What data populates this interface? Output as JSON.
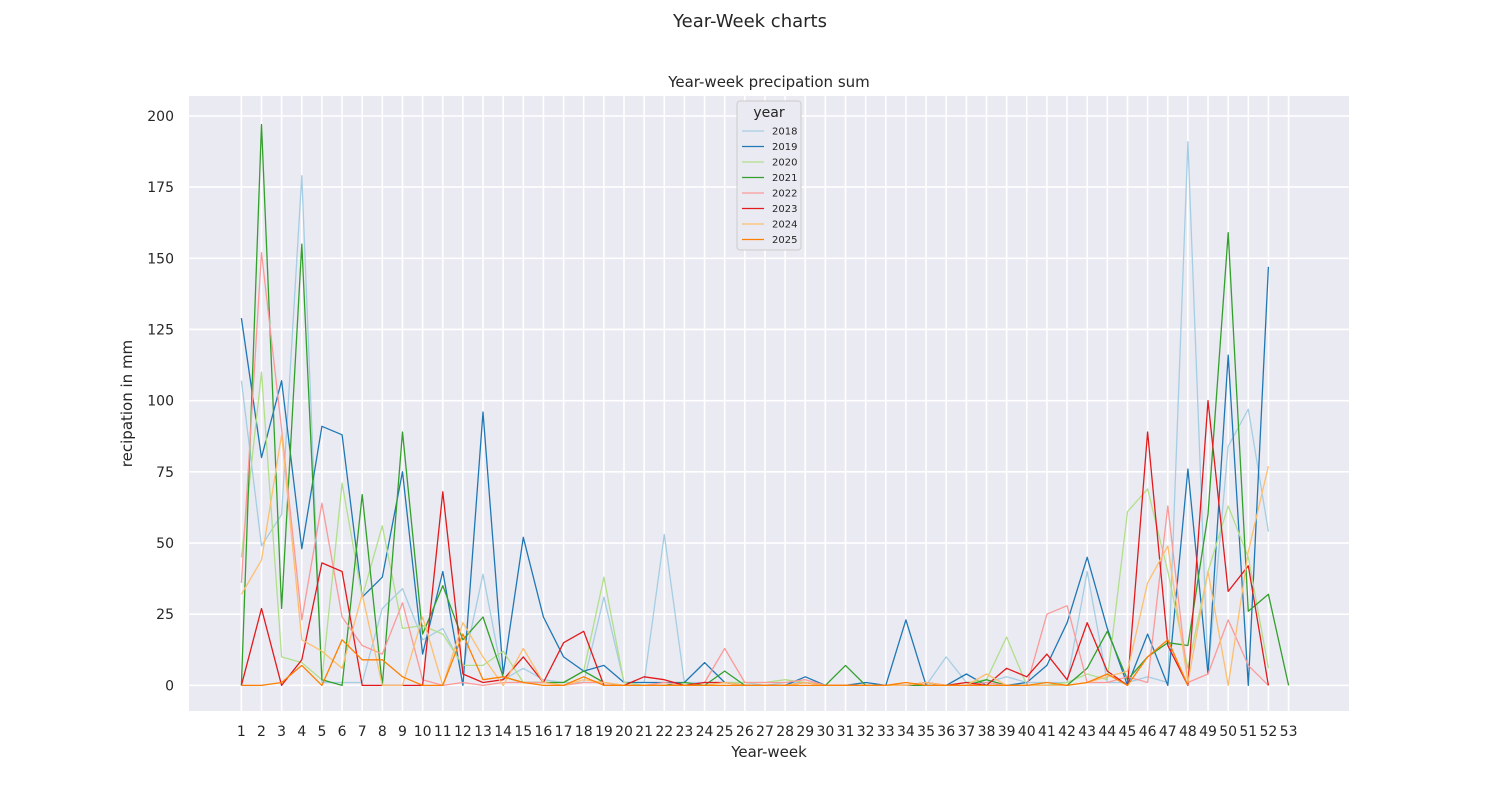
{
  "figure": {
    "suptitle": "Year-Week charts"
  },
  "chart_data": {
    "type": "line",
    "title": "Year-week precipation sum",
    "xlabel": "Year-week",
    "ylabel": "recipation in mm",
    "x": [
      1,
      2,
      3,
      4,
      5,
      6,
      7,
      8,
      9,
      10,
      11,
      12,
      13,
      14,
      15,
      16,
      17,
      18,
      19,
      20,
      21,
      22,
      23,
      24,
      25,
      26,
      27,
      28,
      29,
      30,
      31,
      32,
      33,
      34,
      35,
      36,
      37,
      38,
      39,
      40,
      41,
      42,
      43,
      44,
      45,
      46,
      47,
      48,
      49,
      50,
      51,
      52,
      53
    ],
    "yticks": [
      0,
      25,
      50,
      75,
      100,
      125,
      150,
      175,
      200
    ],
    "ylim": [
      -9,
      207
    ],
    "xlim": [
      -1.6,
      56.0
    ],
    "grid": true,
    "legend": {
      "title": "year",
      "placement": "upper-center"
    },
    "background": "#eaeaf2",
    "series": [
      {
        "name": "2018",
        "color": "#a6cee3",
        "values": [
          107,
          49,
          60,
          179,
          1,
          1,
          1,
          27,
          34,
          16,
          20,
          6,
          39,
          2,
          6,
          2,
          1,
          1,
          31,
          1,
          1,
          53,
          1,
          1,
          1,
          1,
          0,
          1,
          1,
          0,
          0,
          1,
          0,
          0,
          0,
          10,
          1,
          1,
          3,
          1,
          1,
          1,
          40,
          1,
          1,
          3,
          1,
          191,
          4,
          84,
          97,
          54,
          null
        ]
      },
      {
        "name": "2019",
        "color": "#1f78b4",
        "values": [
          129,
          80,
          107,
          48,
          91,
          88,
          31,
          38,
          75,
          11,
          40,
          0,
          96,
          4,
          52,
          24,
          10,
          5,
          7,
          1,
          1,
          1,
          1,
          8,
          1,
          0,
          0,
          0,
          3,
          0,
          0,
          1,
          0,
          23,
          0,
          0,
          4,
          0,
          0,
          1,
          7,
          22,
          45,
          20,
          0,
          18,
          0,
          76,
          4,
          116,
          0,
          147,
          null
        ]
      },
      {
        "name": "2020",
        "color": "#b2df8a",
        "values": [
          45,
          110,
          10,
          8,
          2,
          71,
          31,
          56,
          20,
          21,
          18,
          7,
          7,
          12,
          1,
          1,
          1,
          5,
          38,
          1,
          0,
          0,
          0,
          0,
          1,
          1,
          1,
          2,
          1,
          0,
          0,
          0,
          0,
          0,
          0,
          0,
          1,
          2,
          17,
          0,
          0,
          1,
          4,
          2,
          61,
          69,
          40,
          6,
          40,
          63,
          45,
          6,
          null
        ]
      },
      {
        "name": "2021",
        "color": "#33a02c",
        "values": [
          0,
          197,
          27,
          155,
          2,
          0,
          67,
          0,
          89,
          18,
          35,
          16,
          24,
          3,
          1,
          1,
          1,
          5,
          1,
          0,
          0,
          0,
          1,
          0,
          5,
          0,
          0,
          0,
          1,
          0,
          7,
          0,
          0,
          0,
          0,
          0,
          0,
          2,
          0,
          0,
          0,
          0,
          6,
          19,
          2,
          10,
          15,
          14,
          60,
          159,
          26,
          32,
          0
        ]
      },
      {
        "name": "2022",
        "color": "#fb9a99",
        "values": [
          36,
          152,
          90,
          23,
          64,
          24,
          14,
          11,
          29,
          2,
          0,
          1,
          0,
          1,
          1,
          1,
          0,
          1,
          1,
          0,
          0,
          1,
          0,
          1,
          13,
          1,
          1,
          1,
          2,
          0,
          0,
          0,
          0,
          0,
          1,
          0,
          0,
          1,
          0,
          0,
          25,
          28,
          1,
          1,
          3,
          1,
          63,
          1,
          4,
          23,
          7,
          0,
          null
        ]
      },
      {
        "name": "2023",
        "color": "#e31a1c",
        "values": [
          0,
          27,
          0,
          9,
          43,
          40,
          0,
          0,
          0,
          0,
          68,
          4,
          1,
          2,
          10,
          1,
          15,
          19,
          0,
          0,
          3,
          2,
          0,
          1,
          1,
          0,
          0,
          0,
          1,
          0,
          0,
          0,
          0,
          0,
          1,
          0,
          1,
          0,
          6,
          3,
          11,
          2,
          22,
          5,
          0,
          89,
          14,
          0,
          100,
          33,
          42,
          0,
          null
        ]
      },
      {
        "name": "2024",
        "color": "#fdbf6f",
        "values": [
          32,
          44,
          88,
          16,
          12,
          6,
          32,
          0,
          0,
          24,
          0,
          22,
          10,
          0,
          13,
          1,
          0,
          2,
          1,
          0,
          0,
          0,
          0,
          0,
          1,
          0,
          0,
          0,
          1,
          0,
          0,
          0,
          0,
          0,
          1,
          0,
          0,
          4,
          0,
          0,
          0,
          0,
          1,
          3,
          5,
          36,
          49,
          1,
          40,
          0,
          47,
          77,
          null
        ]
      },
      {
        "name": "2025",
        "color": "#ff7f00",
        "values": [
          0,
          0,
          1,
          7,
          0,
          16,
          9,
          9,
          3,
          0,
          0,
          18,
          2,
          3,
          1,
          0,
          0,
          3,
          0,
          0,
          0,
          0,
          0,
          0,
          0,
          0,
          0,
          0,
          0,
          0,
          0,
          0,
          0,
          1,
          0,
          0,
          0,
          0,
          0,
          0,
          1,
          0,
          1,
          4,
          0,
          10,
          16,
          0,
          null,
          null,
          null,
          null,
          null
        ]
      }
    ]
  }
}
